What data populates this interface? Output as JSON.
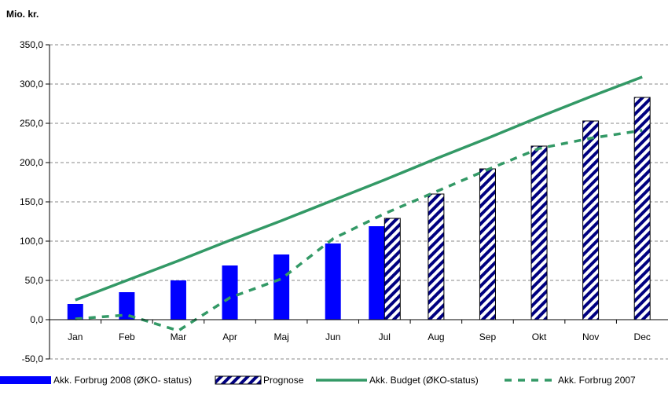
{
  "chart_data": {
    "type": "bar",
    "ylabel": "Mio. kr.",
    "ylim": [
      -50,
      350
    ],
    "ytick_step": 50,
    "grid": true,
    "legend_position": "bottom",
    "categories": [
      "Jan",
      "Feb",
      "Mar",
      "Apr",
      "Maj",
      "Jun",
      "Jul",
      "Aug",
      "Sep",
      "Okt",
      "Nov",
      "Dec"
    ],
    "series": [
      {
        "name": "Akk. Forbrug 2008 (ØKO- status)",
        "kind": "bar",
        "color": "#0000ff",
        "values": [
          20,
          35,
          50,
          69,
          83,
          97,
          119,
          null,
          null,
          null,
          null,
          null
        ]
      },
      {
        "name": "Prognose",
        "kind": "bar-hatched",
        "color": "#000080",
        "values": [
          null,
          null,
          null,
          null,
          null,
          null,
          129,
          160,
          192,
          221,
          253,
          283
        ]
      },
      {
        "name": "Akk. Budget (ØKO-status)",
        "kind": "line",
        "color": "#339966",
        "values": [
          25,
          50,
          75,
          101,
          126,
          152,
          178,
          205,
          231,
          258,
          284,
          309
        ]
      },
      {
        "name": "Akk. Forbrug 2007",
        "kind": "dashed-line",
        "color": "#339966",
        "values": [
          1,
          6,
          -14,
          28,
          52,
          103,
          135,
          163,
          191,
          218,
          231,
          241
        ]
      }
    ]
  }
}
